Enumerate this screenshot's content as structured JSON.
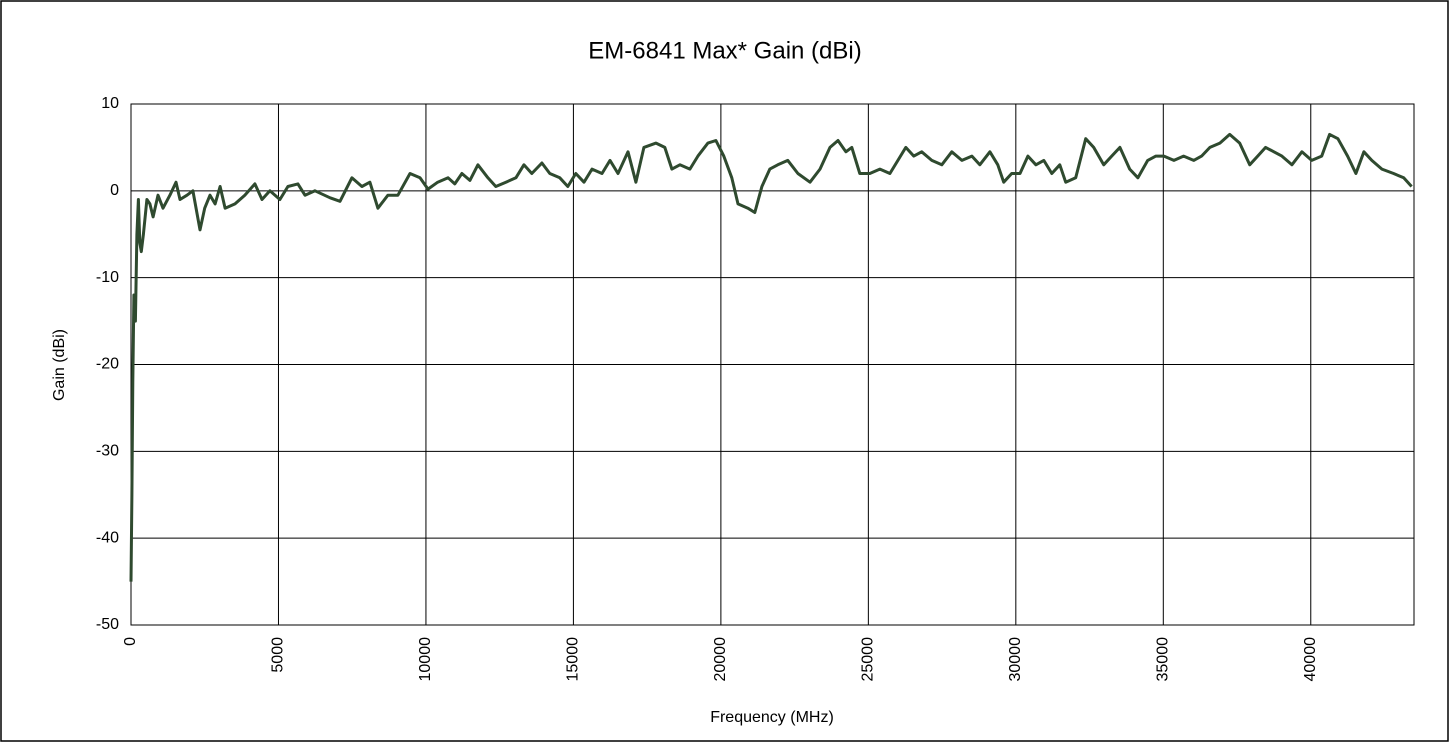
{
  "chart_data": {
    "type": "line",
    "title": "EM-6841 Max* Gain (dBi)",
    "x_label": "Frequency (MHz)",
    "y_label": "Gain (dBi)",
    "xlim": [
      0,
      43500
    ],
    "ylim": [
      -50,
      10
    ],
    "xticks": [
      0,
      5000,
      10000,
      15000,
      20000,
      25000,
      30000,
      35000,
      40000
    ],
    "yticks": [
      -50,
      -40,
      -30,
      -20,
      -10,
      0,
      10
    ],
    "grid": true,
    "x": [
      0,
      30,
      60,
      100,
      150,
      200,
      250,
      300,
      350,
      420,
      540,
      640,
      750,
      915,
      1085,
      1320,
      1525,
      1660,
      1900,
      2100,
      2340,
      2500,
      2680,
      2850,
      3020,
      3190,
      3525,
      3860,
      4200,
      4440,
      4710,
      5050,
      5320,
      5660,
      5900,
      6240,
      6750,
      7085,
      7490,
      7830,
      8100,
      8370,
      8710,
      9050,
      9460,
      9800,
      10070,
      10400,
      10750,
      10980,
      11220,
      11490,
      11760,
      12100,
      12370,
      12710,
      13050,
      13320,
      13590,
      13930,
      14200,
      14540,
      14810,
      15080,
      15360,
      15630,
      15970,
      16240,
      16510,
      16850,
      17120,
      17390,
      17800,
      18100,
      18340,
      18610,
      18950,
      19220,
      19560,
      19830,
      20100,
      20370,
      20580,
      20915,
      21150,
      21390,
      21660,
      21930,
      22270,
      22610,
      23020,
      23360,
      23700,
      23970,
      24240,
      24440,
      24710,
      25050,
      25390,
      25730,
      26000,
      26270,
      26540,
      26810,
      27150,
      27490,
      27830,
      28170,
      28510,
      28780,
      29120,
      29390,
      29590,
      29860,
      30140,
      30410,
      30680,
      30950,
      31220,
      31490,
      31690,
      32030,
      32370,
      32640,
      32980,
      33250,
      33530,
      33860,
      34140,
      34470,
      34750,
      35020,
      35360,
      35690,
      36030,
      36300,
      36580,
      36920,
      37250,
      37590,
      37930,
      38200,
      38470,
      38750,
      39020,
      39360,
      39700,
      40030,
      40370,
      40640,
      40920,
      41250,
      41530,
      41800,
      42070,
      42410,
      42810,
      43150,
      43420
    ],
    "series": [
      {
        "name": "Max Gain",
        "color": "#2f4a2f",
        "values": [
          -45,
          -35,
          -22,
          -12,
          -15,
          -5,
          -1,
          -6,
          -7,
          -5,
          -1,
          -1.5,
          -3,
          -0.5,
          -2,
          -0.5,
          1,
          -1,
          -0.5,
          0,
          -4.5,
          -2,
          -0.5,
          -1.5,
          0.5,
          -2,
          -1.5,
          -0.5,
          0.8,
          -1,
          0,
          -1,
          0.5,
          0.8,
          -0.5,
          0,
          -0.8,
          -1.2,
          1.5,
          0.5,
          1,
          -2,
          -0.5,
          -0.5,
          2,
          1.5,
          0.2,
          1,
          1.5,
          0.8,
          2,
          1.2,
          3,
          1.5,
          0.5,
          1,
          1.5,
          3,
          2,
          3.2,
          2,
          1.5,
          0.5,
          2,
          1,
          2.5,
          2,
          3.5,
          2,
          4.5,
          1,
          5,
          5.5,
          5,
          2.5,
          3,
          2.5,
          4,
          5.5,
          5.8,
          4,
          1.5,
          -1.5,
          -2,
          -2.5,
          0.5,
          2.5,
          3,
          3.5,
          2,
          1,
          2.5,
          5,
          5.8,
          4.5,
          5,
          2,
          2,
          2.5,
          2,
          3.5,
          5,
          4,
          4.5,
          3.5,
          3,
          4.5,
          3.5,
          4,
          3,
          4.5,
          3,
          1,
          2,
          2,
          4,
          3,
          3.5,
          2,
          3,
          1,
          1.5,
          6,
          5,
          3,
          4,
          5,
          2.5,
          1.5,
          3.5,
          4,
          4,
          3.5,
          4,
          3.5,
          4,
          5,
          5.5,
          6.5,
          5.5,
          3,
          4,
          5,
          4.5,
          4,
          3,
          4.5,
          3.5,
          4,
          6.5,
          6,
          4,
          2,
          4.5,
          3.5,
          2.5,
          2,
          1.5,
          0.5
        ]
      }
    ]
  }
}
